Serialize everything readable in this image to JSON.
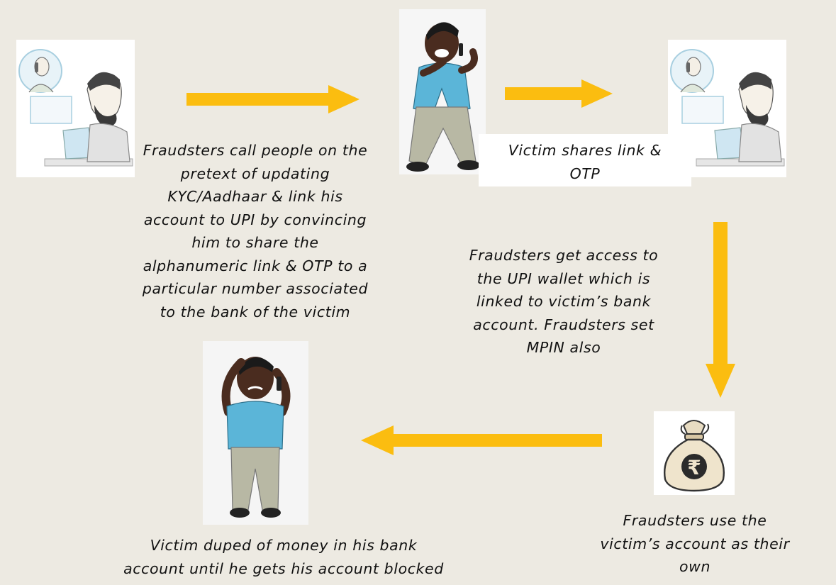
{
  "steps": {
    "step1_text": "Fraudsters call people on the\npretext of updating\nKYC/Aadhaar & link his\naccount to UPI by convincing\nhim to share the\nalphanumeric link  & OTP to a\nparticular number associated\nto the bank of the victim",
    "step2_text": "Victim shares link &\nOTP",
    "step3_text": "Fraudsters get access to\nthe UPI wallet which is\nlinked to victim’s bank\naccount. Fraudsters set\nMPIN also",
    "step4_text": "Fraudsters use the\nvictim’s account as their\nown",
    "step5_text": "Victim duped of money in his bank\naccount until he gets his account blocked"
  },
  "icons": {
    "currency_symbol": "₹"
  },
  "colors": {
    "background": "#edeae2",
    "arrow": "#fbbd10",
    "shirt": "#5bb5d8",
    "skin": "#4a2c1f"
  }
}
